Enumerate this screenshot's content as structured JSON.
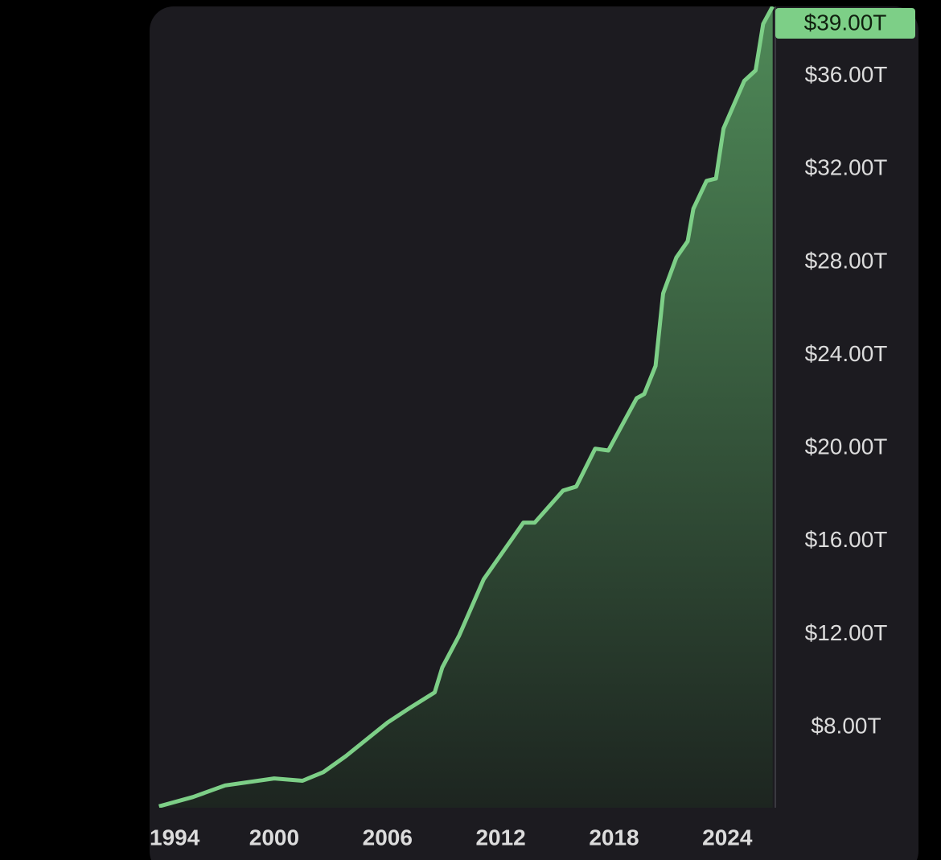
{
  "chart_data": {
    "type": "area",
    "x": [
      1993.9,
      1995.7,
      1997.4,
      2000.0,
      2001.5,
      2002.6,
      2003.8,
      2006.0,
      2007.2,
      2008.5,
      2008.9,
      2009.8,
      2011.1,
      2013.2,
      2013.8,
      2015.3,
      2016.0,
      2017.0,
      2017.7,
      2019.2,
      2019.6,
      2020.2,
      2020.6,
      2021.3,
      2021.9,
      2022.2,
      2022.9,
      2023.4,
      2023.8,
      2024.9,
      2025.5,
      2025.9,
      2026.4
    ],
    "values": [
      4.6,
      5.0,
      5.5,
      5.8,
      5.7,
      6.07,
      6.76,
      8.2,
      8.84,
      9.5,
      10.57,
      11.95,
      14.37,
      16.8,
      16.8,
      18.18,
      18.35,
      19.98,
      19.9,
      22.15,
      22.33,
      23.54,
      26.66,
      28.2,
      28.9,
      30.3,
      31.5,
      31.6,
      33.75,
      35.8,
      36.25,
      38.25,
      39
    ],
    "value_labels": [
      null,
      null,
      null,
      null,
      null,
      null,
      null,
      null,
      null,
      null,
      null,
      null,
      null,
      null,
      null,
      null,
      null,
      null,
      null,
      null,
      null,
      null,
      null,
      null,
      null,
      null,
      null,
      null,
      null,
      null,
      null,
      null,
      "$39.00T"
    ],
    "color": "#7dcf87",
    "xlim": [
      1993.4,
      2026.5
    ],
    "xticks": [
      1994,
      2000,
      2006,
      2012,
      2018,
      2024
    ],
    "ylim": [
      4.54,
      39.0
    ],
    "yticks": [
      {
        "value": 8,
        "label": "$8.00T"
      },
      {
        "value": 12,
        "label": "$12.00T"
      },
      {
        "value": 16,
        "label": "$16.00T"
      },
      {
        "value": 20,
        "label": "$20.00T"
      },
      {
        "value": 24,
        "label": "$24.00T"
      },
      {
        "value": 28,
        "label": "$28.00T"
      },
      {
        "value": 32,
        "label": "$32.00T"
      },
      {
        "value": 36,
        "label": "$36.00T"
      }
    ],
    "grid": false
  }
}
